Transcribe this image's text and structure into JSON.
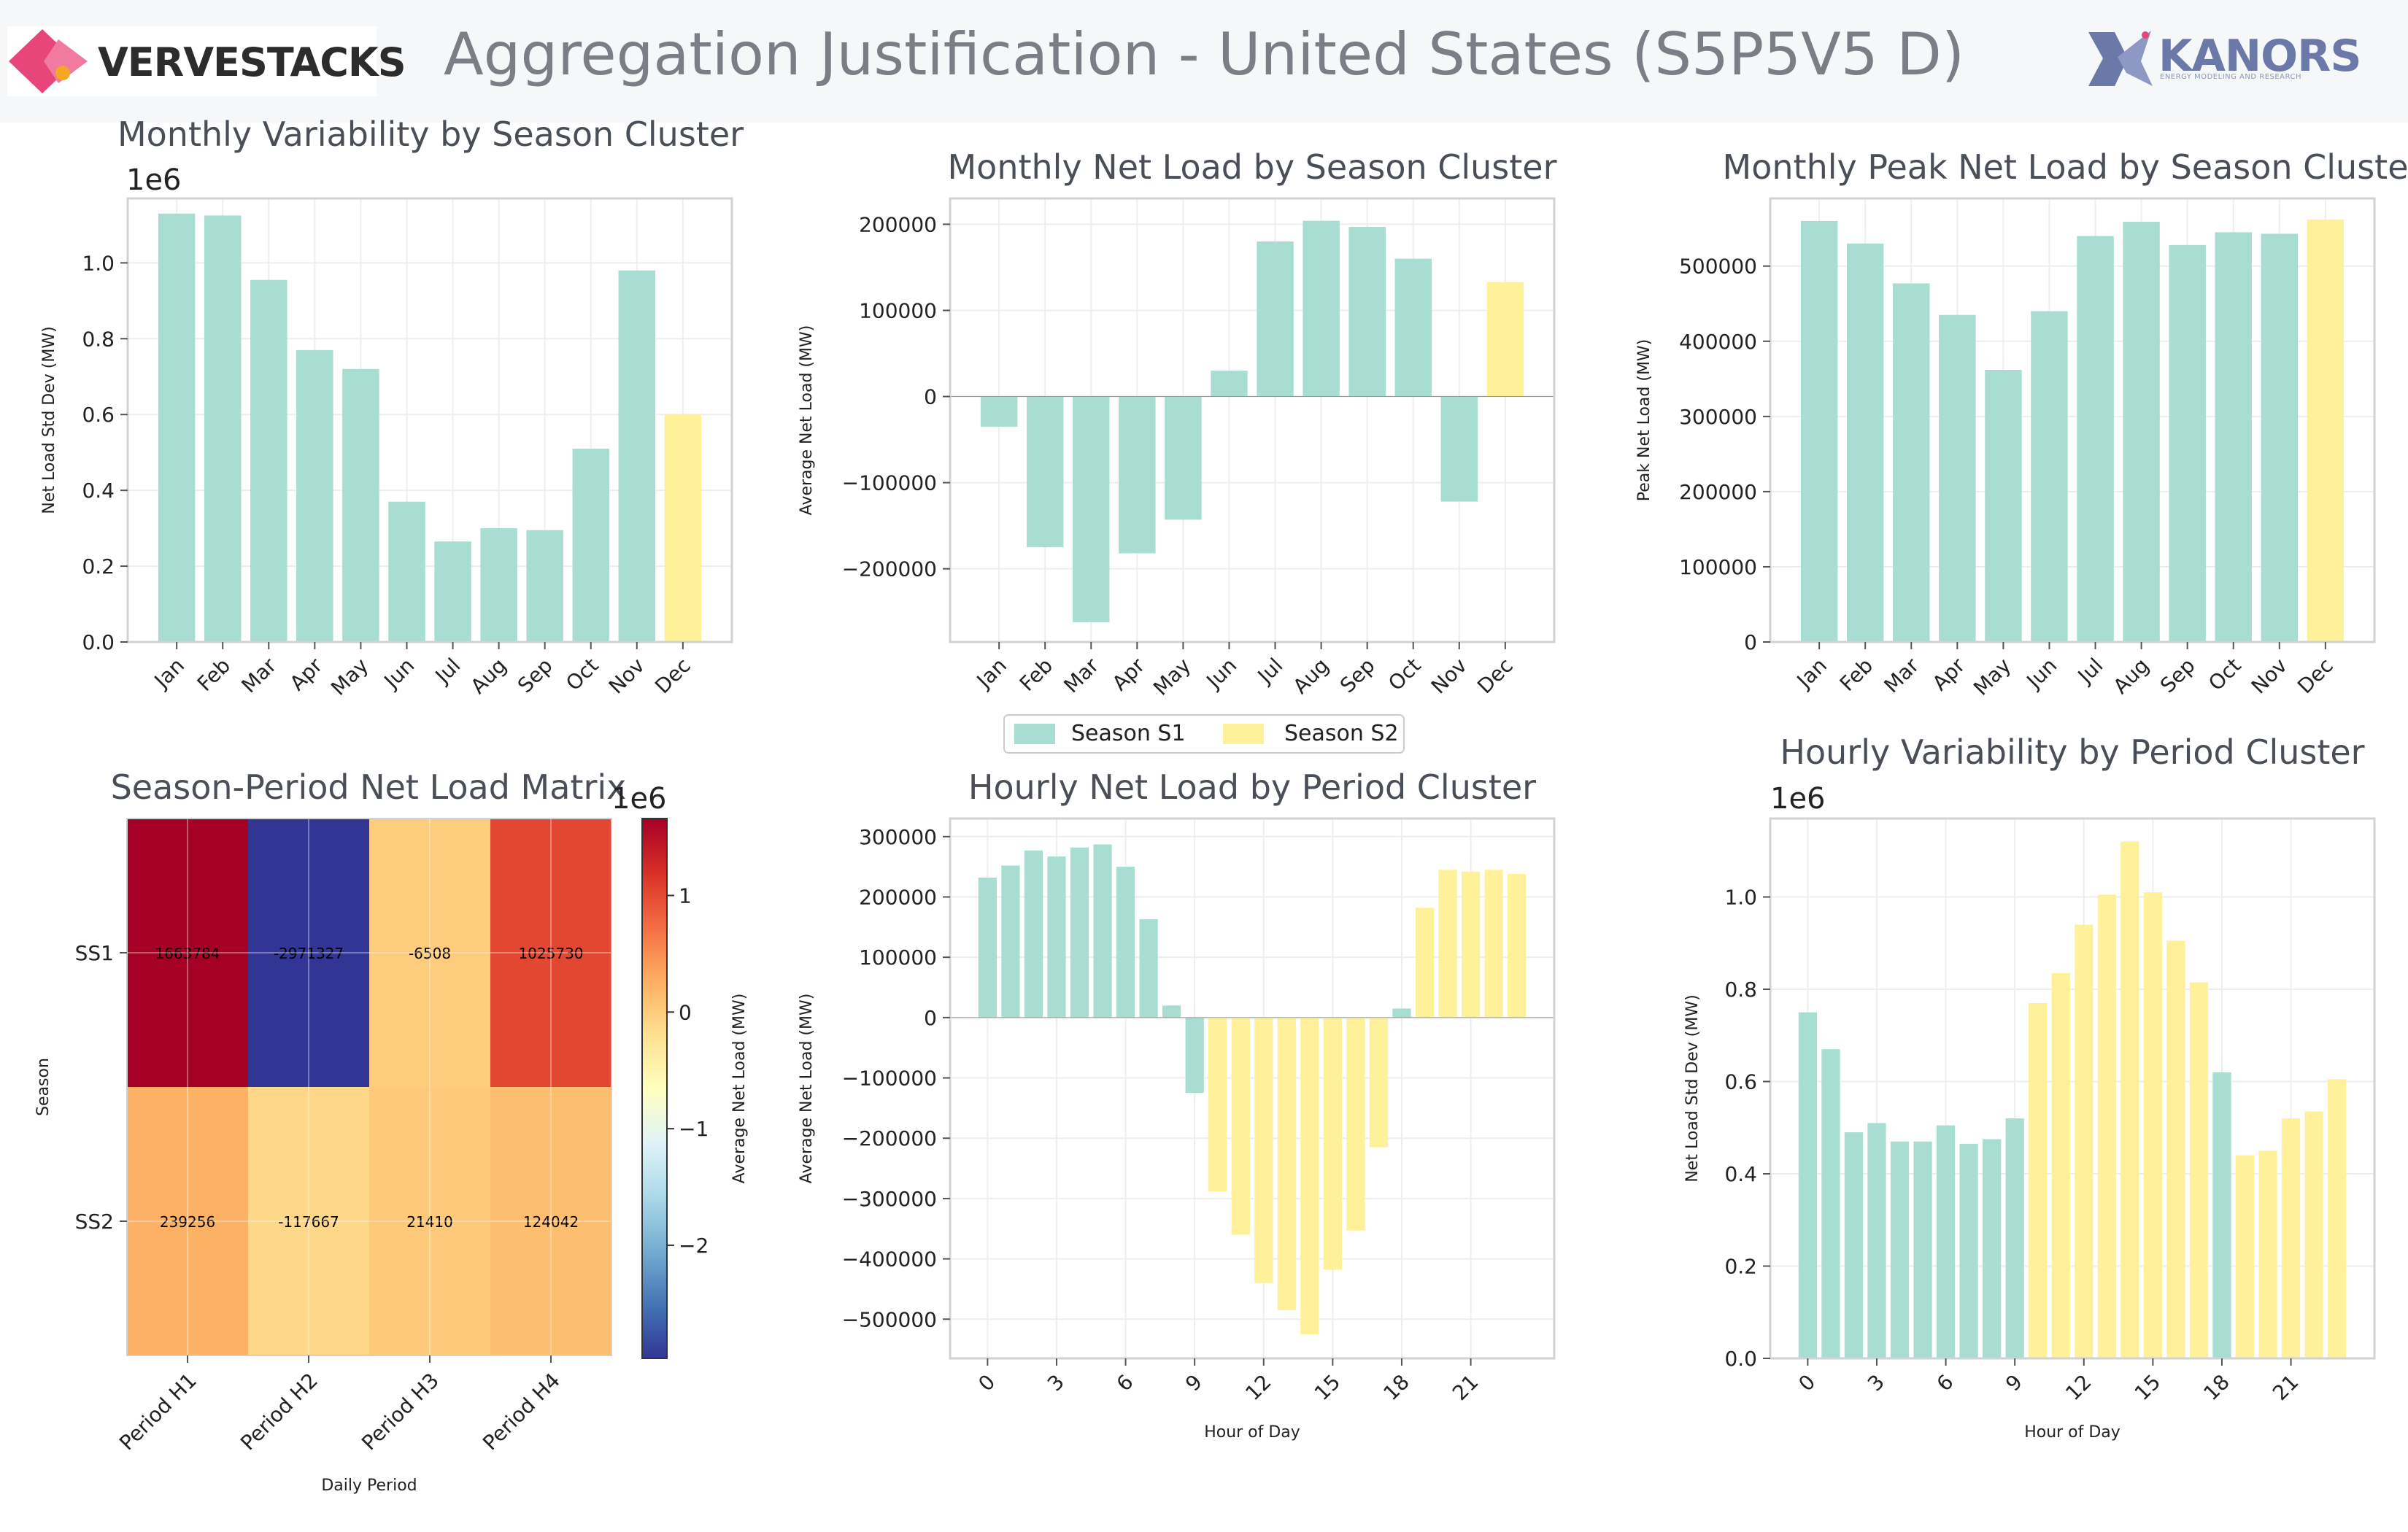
{
  "header": {
    "title": "Aggregation Justification - United States (S5P5V5 D)",
    "left_logo_text": "VERVESTACKS",
    "right_logo_text": "KANORS",
    "right_logo_subtext": "ENERGY MODELING AND RESEARCH"
  },
  "colors": {
    "season_s1": "#a8ddd2",
    "season_s2": "#fff09a",
    "title": "#4a4f57",
    "axis": "#cfd2d6",
    "grid": "#eeeeee",
    "vervestacks_logo": "#e8467a",
    "kanors_logo": "#6b79a8"
  },
  "legend": {
    "items": [
      "Season S1",
      "Season S2"
    ]
  },
  "chart_data": [
    {
      "id": "c1",
      "type": "bar",
      "title": "Monthly Variability by Season Cluster",
      "xlabel": "",
      "ylabel": "Net Load Std Dev (MW)",
      "offset_label": "1e6",
      "categories": [
        "Jan",
        "Feb",
        "Mar",
        "Apr",
        "May",
        "Jun",
        "Jul",
        "Aug",
        "Sep",
        "Oct",
        "Nov",
        "Dec"
      ],
      "values": [
        1.13,
        1.125,
        0.955,
        0.77,
        0.72,
        0.37,
        0.265,
        0.3,
        0.295,
        0.51,
        0.98,
        0.6
      ],
      "cluster": [
        1,
        1,
        1,
        1,
        1,
        1,
        1,
        1,
        1,
        1,
        1,
        2
      ],
      "ylim": [
        0,
        1.17
      ],
      "yticks": [
        0.0,
        0.2,
        0.4,
        0.6,
        0.8,
        1.0
      ],
      "yticklabels": [
        "0.0",
        "0.2",
        "0.4",
        "0.6",
        "0.8",
        "1.0"
      ]
    },
    {
      "id": "c2",
      "type": "bar",
      "title": "Monthly Net Load by Season Cluster",
      "xlabel": "",
      "ylabel": "Average Net Load (MW)",
      "categories": [
        "Jan",
        "Feb",
        "Mar",
        "Apr",
        "May",
        "Jun",
        "Jul",
        "Aug",
        "Sep",
        "Oct",
        "Nov",
        "Dec"
      ],
      "values": [
        -35000,
        -175000,
        -262000,
        -182000,
        -143000,
        30000,
        180000,
        204000,
        197000,
        160000,
        -122000,
        133000
      ],
      "cluster": [
        1,
        1,
        1,
        1,
        1,
        1,
        1,
        1,
        1,
        1,
        1,
        2
      ],
      "ylim": [
        -285000,
        230000
      ],
      "yticks": [
        -200000,
        -100000,
        0,
        100000,
        200000
      ],
      "yticklabels": [
        "−200000",
        "−100000",
        "0",
        "100000",
        "200000"
      ]
    },
    {
      "id": "c3",
      "type": "bar",
      "title": "Monthly Peak Net Load by Season Cluster",
      "xlabel": "",
      "ylabel": "Peak Net Load (MW)",
      "categories": [
        "Jan",
        "Feb",
        "Mar",
        "Apr",
        "May",
        "Jun",
        "Jul",
        "Aug",
        "Sep",
        "Oct",
        "Nov",
        "Dec"
      ],
      "values": [
        560000,
        530000,
        477000,
        435000,
        362000,
        440000,
        540000,
        559000,
        528000,
        545000,
        543000,
        562000
      ],
      "cluster": [
        1,
        1,
        1,
        1,
        1,
        1,
        1,
        1,
        1,
        1,
        1,
        2
      ],
      "ylim": [
        0,
        590000
      ],
      "yticks": [
        0,
        100000,
        200000,
        300000,
        400000,
        500000
      ],
      "yticklabels": [
        "0",
        "100000",
        "200000",
        "300000",
        "400000",
        "500000"
      ]
    },
    {
      "id": "c4",
      "type": "heatmap",
      "title": "Season-Period Net Load Matrix",
      "xlabel": "Daily Period",
      "ylabel": "Season",
      "x_categories": [
        "Period H1",
        "Period H2",
        "Period H3",
        "Period H4"
      ],
      "y_categories": [
        "SS1",
        "SS2"
      ],
      "values": [
        [
          1663784,
          -2971327,
          -6508,
          1025730
        ],
        [
          239256,
          -117667,
          21410,
          124042
        ]
      ],
      "cell_labels": [
        [
          "1663784",
          "-2971327",
          "-6508",
          "1025730"
        ],
        [
          "239256",
          "-117667",
          "21410",
          "124042"
        ]
      ],
      "colorbar": {
        "label": "Average Net Load (MW)",
        "offset_label": "1e6",
        "vmin": -2.97,
        "vmax": 1.66,
        "ticks": [
          1,
          0,
          -1,
          -2
        ],
        "ticklabels": [
          "1",
          "0",
          "−1",
          "−2"
        ]
      }
    },
    {
      "id": "c5",
      "type": "bar",
      "title": "Hourly Net Load by Period Cluster",
      "xlabel": "Hour of Day",
      "ylabel": "Average Net Load (MW)",
      "x": [
        0,
        1,
        2,
        3,
        4,
        5,
        6,
        7,
        8,
        9,
        10,
        11,
        12,
        13,
        14,
        15,
        16,
        17,
        18,
        19,
        20,
        21,
        22,
        23
      ],
      "values": [
        232000,
        252000,
        277000,
        267000,
        282000,
        287000,
        250000,
        163000,
        20000,
        -125000,
        -288000,
        -360000,
        -440000,
        -485000,
        -525000,
        -418000,
        -353000,
        -215000,
        15000,
        182000,
        245000,
        242000,
        245000,
        238000
      ],
      "cluster": [
        1,
        1,
        1,
        1,
        1,
        1,
        1,
        1,
        1,
        1,
        2,
        2,
        2,
        2,
        2,
        2,
        2,
        2,
        1,
        2,
        2,
        2,
        2,
        2
      ],
      "ylim": [
        -565000,
        330000
      ],
      "yticks": [
        -500000,
        -400000,
        -300000,
        -200000,
        -100000,
        0,
        100000,
        200000,
        300000
      ],
      "yticklabels": [
        "−500000",
        "−400000",
        "−300000",
        "−200000",
        "−100000",
        "0",
        "100000",
        "200000",
        "300000"
      ],
      "xticks": [
        0,
        3,
        6,
        9,
        12,
        15,
        18,
        21
      ],
      "xticklabels": [
        "0",
        "3",
        "6",
        "9",
        "12",
        "15",
        "18",
        "21"
      ]
    },
    {
      "id": "c6",
      "type": "bar",
      "title": "Hourly Variability by Period Cluster",
      "xlabel": "Hour of Day",
      "ylabel": "Net Load Std Dev (MW)",
      "offset_label": "1e6",
      "x": [
        0,
        1,
        2,
        3,
        4,
        5,
        6,
        7,
        8,
        9,
        10,
        11,
        12,
        13,
        14,
        15,
        16,
        17,
        18,
        19,
        20,
        21,
        22,
        23
      ],
      "values": [
        0.75,
        0.67,
        0.49,
        0.51,
        0.47,
        0.47,
        0.505,
        0.465,
        0.475,
        0.52,
        0.77,
        0.835,
        0.94,
        1.005,
        1.12,
        1.01,
        0.905,
        0.815,
        0.62,
        0.44,
        0.45,
        0.52,
        0.535,
        0.605
      ],
      "cluster": [
        1,
        1,
        1,
        1,
        1,
        1,
        1,
        1,
        1,
        1,
        2,
        2,
        2,
        2,
        2,
        2,
        2,
        2,
        1,
        2,
        2,
        2,
        2,
        2
      ],
      "ylim": [
        0,
        1.17
      ],
      "yticks": [
        0.0,
        0.2,
        0.4,
        0.6,
        0.8,
        1.0
      ],
      "yticklabels": [
        "0.0",
        "0.2",
        "0.4",
        "0.6",
        "0.8",
        "1.0"
      ],
      "xticks": [
        0,
        3,
        6,
        9,
        12,
        15,
        18,
        21
      ],
      "xticklabels": [
        "0",
        "3",
        "6",
        "9",
        "12",
        "15",
        "18",
        "21"
      ]
    }
  ]
}
